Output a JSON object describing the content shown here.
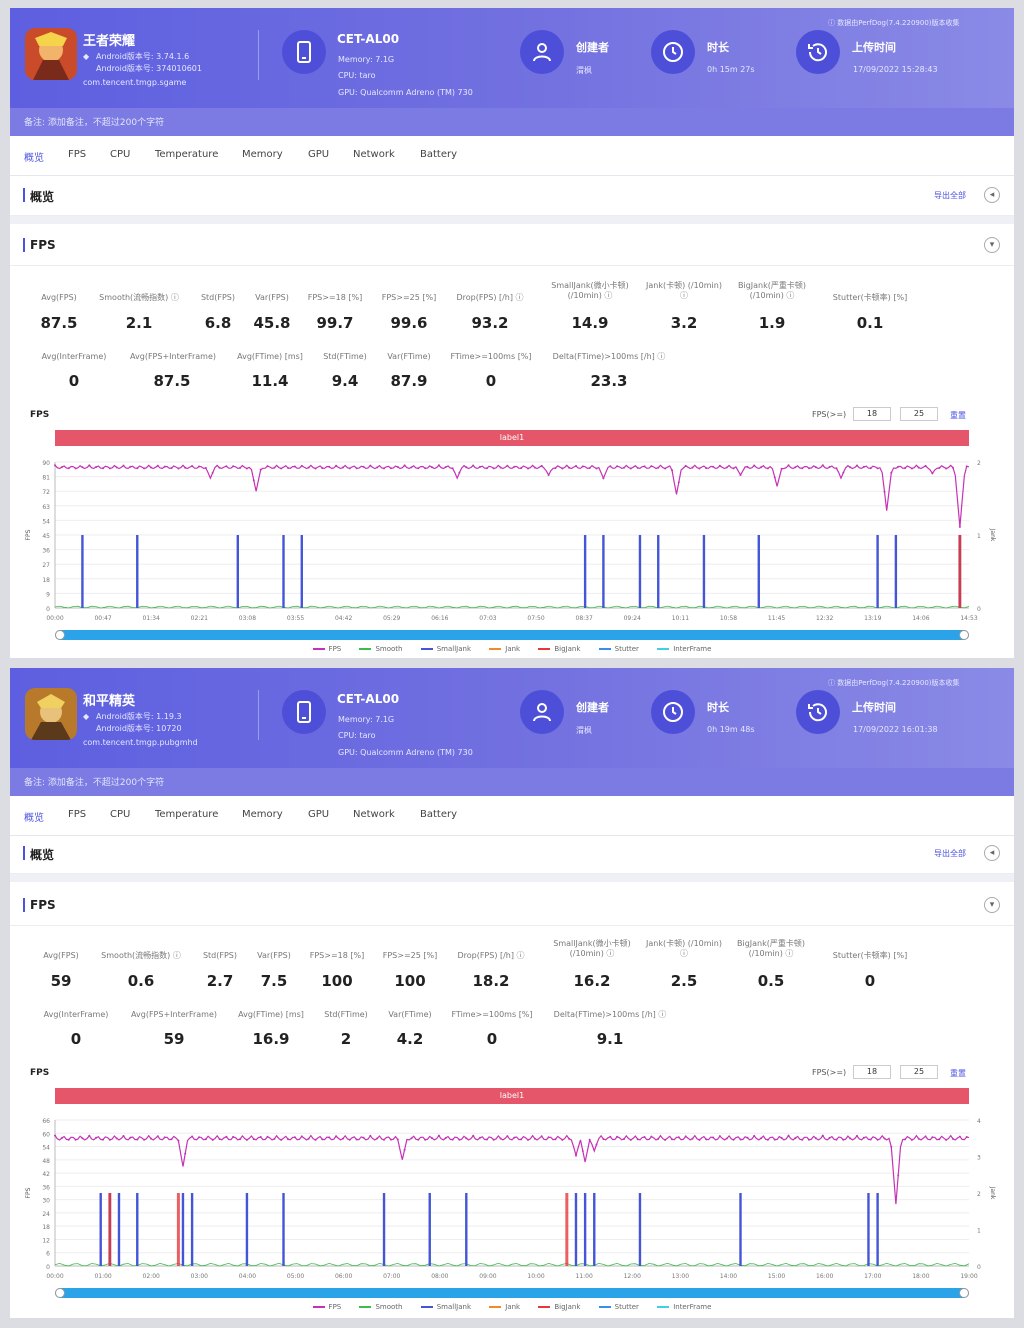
{
  "colors": {
    "accent": "#4b52e0",
    "fps": "#c532b6",
    "smooth": "#3dbb4e",
    "smalljank": "#4456d6",
    "jank": "#f08a2a",
    "bigjank": "#e5383b",
    "stutter": "#3a8ee6",
    "interframe": "#3fd0e6",
    "label_bar": "#e5566a"
  },
  "tabs": [
    "概览",
    "FPS",
    "CPU",
    "Temperature",
    "Memory",
    "GPU",
    "Network",
    "Battery"
  ],
  "legend": [
    "FPS",
    "Smooth",
    "SmallJank",
    "Jank",
    "BigJank",
    "Stutter",
    "InterFrame"
  ],
  "reports": [
    {
      "game": {
        "name": "王者荣耀",
        "version_label": "Android版本号: 3.74.1.6",
        "code_label": "Android版本号: 374010601",
        "package": "com.tencent.tmgp.sgame"
      },
      "device": {
        "model": "CET-AL00",
        "memory": "Memory: 7.1G",
        "cpu": "CPU: taro",
        "gpu": "GPU: Qualcomm Adreno (TM) 730"
      },
      "creator": {
        "title": "创建者",
        "value": "渭枫"
      },
      "duration": {
        "title": "时长",
        "value": "0h 15m 27s"
      },
      "upload": {
        "title": "上传时间",
        "value": "17/09/2022 15:28:43"
      },
      "source_note": "ⓘ 数据由PerfDog(7.4.220900)版本收集",
      "remark": "备注: 添加备注，不超过200个字符",
      "overview_title": "概览",
      "export_label": "导出全部",
      "fps_section_title": "FPS",
      "metrics_row1": [
        {
          "label": "Avg(FPS)",
          "value": "87.5"
        },
        {
          "label": "Smooth(流畅指数) ⓘ",
          "value": "2.1"
        },
        {
          "label": "Std(FPS)",
          "value": "6.8"
        },
        {
          "label": "Var(FPS)",
          "value": "45.8"
        },
        {
          "label": "FPS>=18 [%]",
          "value": "99.7"
        },
        {
          "label": "FPS>=25 [%]",
          "value": "99.6"
        },
        {
          "label": "Drop(FPS) [/h] ⓘ",
          "value": "93.2"
        },
        {
          "label": "SmallJank(微小卡顿) (/10min) ⓘ",
          "value": "14.9"
        },
        {
          "label": "Jank(卡顿) (/10min) ⓘ",
          "value": "3.2"
        },
        {
          "label": "BigJank(严重卡顿) (/10min) ⓘ",
          "value": "1.9"
        },
        {
          "label": "Stutter(卡顿率) [%]",
          "value": "0.1"
        }
      ],
      "metrics_row2": [
        {
          "label": "Avg(InterFrame)",
          "value": "0"
        },
        {
          "label": "Avg(FPS+InterFrame)",
          "value": "87.5"
        },
        {
          "label": "Avg(FTime) [ms]",
          "value": "11.4"
        },
        {
          "label": "Std(FTime)",
          "value": "9.4"
        },
        {
          "label": "Var(FTime)",
          "value": "87.9"
        },
        {
          "label": "FTime>=100ms [%]",
          "value": "0"
        },
        {
          "label": "Delta(FTime)>100ms [/h] ⓘ",
          "value": "23.3"
        }
      ],
      "chart_label": "FPS",
      "threshold_label": "FPS(>=)",
      "threshold_1": "18",
      "threshold_2": "25",
      "threshold_link": "重置",
      "label_bar": "label1",
      "chart_data": {
        "type": "line",
        "ylabel": "FPS",
        "y2label": "Jank",
        "y_ticks": [
          "90",
          "81",
          "72",
          "63",
          "54",
          "45",
          "36",
          "27",
          "18",
          "9",
          "0"
        ],
        "y2_ticks": [
          "2",
          "1",
          "0"
        ],
        "ylim": [
          0,
          90
        ],
        "y2lim": [
          0,
          2
        ],
        "x_ticks": [
          "00:00",
          "00:47",
          "01:34",
          "02:21",
          "03:08",
          "03:55",
          "04:42",
          "05:29",
          "06:16",
          "07:03",
          "07:50",
          "08:37",
          "09:24",
          "10:11",
          "10:58",
          "11:45",
          "12:32",
          "13:19",
          "14:06",
          "14:53"
        ],
        "fps_base": 88,
        "fps_dips": [
          [
            0.17,
            80
          ],
          [
            0.22,
            72
          ],
          [
            0.44,
            80
          ],
          [
            0.54,
            82
          ],
          [
            0.6,
            80
          ],
          [
            0.68,
            70
          ],
          [
            0.75,
            82
          ],
          [
            0.79,
            75
          ],
          [
            0.86,
            80
          ],
          [
            0.91,
            60
          ],
          [
            0.96,
            83
          ],
          [
            0.99,
            50
          ]
        ],
        "smalljank_spikes": [
          0.03,
          0.09,
          0.2,
          0.25,
          0.27,
          0.58,
          0.6,
          0.64,
          0.66,
          0.71,
          0.77,
          0.9,
          0.92,
          0.99
        ],
        "bigjank_spikes": [
          0.99
        ]
      }
    },
    {
      "game": {
        "name": "和平精英",
        "version_label": "Android版本号: 1.19.3",
        "code_label": "Android版本号: 10720",
        "package": "com.tencent.tmgp.pubgmhd"
      },
      "device": {
        "model": "CET-AL00",
        "memory": "Memory: 7.1G",
        "cpu": "CPU: taro",
        "gpu": "GPU: Qualcomm Adreno (TM) 730"
      },
      "creator": {
        "title": "创建者",
        "value": "渭枫"
      },
      "duration": {
        "title": "时长",
        "value": "0h 19m 48s"
      },
      "upload": {
        "title": "上传时间",
        "value": "17/09/2022 16:01:38"
      },
      "source_note": "ⓘ 数据由PerfDog(7.4.220900)版本收集",
      "remark": "备注: 添加备注，不超过200个字符",
      "overview_title": "概览",
      "export_label": "导出全部",
      "fps_section_title": "FPS",
      "metrics_row1": [
        {
          "label": "Avg(FPS)",
          "value": "59"
        },
        {
          "label": "Smooth(流畅指数) ⓘ",
          "value": "0.6"
        },
        {
          "label": "Std(FPS)",
          "value": "2.7"
        },
        {
          "label": "Var(FPS)",
          "value": "7.5"
        },
        {
          "label": "FPS>=18 [%]",
          "value": "100"
        },
        {
          "label": "FPS>=25 [%]",
          "value": "100"
        },
        {
          "label": "Drop(FPS) [/h] ⓘ",
          "value": "18.2"
        },
        {
          "label": "SmallJank(微小卡顿) (/10min) ⓘ",
          "value": "16.2"
        },
        {
          "label": "Jank(卡顿) (/10min) ⓘ",
          "value": "2.5"
        },
        {
          "label": "BigJank(严重卡顿) (/10min) ⓘ",
          "value": "0.5"
        },
        {
          "label": "Stutter(卡顿率) [%]",
          "value": "0"
        }
      ],
      "metrics_row2": [
        {
          "label": "Avg(InterFrame)",
          "value": "0"
        },
        {
          "label": "Avg(FPS+InterFrame)",
          "value": "59"
        },
        {
          "label": "Avg(FTime) [ms]",
          "value": "16.9"
        },
        {
          "label": "Std(FTime)",
          "value": "2"
        },
        {
          "label": "Var(FTime)",
          "value": "4.2"
        },
        {
          "label": "FTime>=100ms [%]",
          "value": "0"
        },
        {
          "label": "Delta(FTime)>100ms [/h] ⓘ",
          "value": "9.1"
        }
      ],
      "chart_label": "FPS",
      "threshold_label": "FPS(>=)",
      "threshold_1": "18",
      "threshold_2": "25",
      "threshold_link": "重置",
      "label_bar": "label1",
      "chart_data": {
        "type": "line",
        "ylabel": "FPS",
        "y2label": "Jank",
        "y_ticks": [
          "66",
          "60",
          "54",
          "48",
          "42",
          "36",
          "30",
          "24",
          "18",
          "12",
          "6",
          "0"
        ],
        "y2_ticks": [
          "4",
          "3",
          "2",
          "1",
          "0"
        ],
        "ylim": [
          0,
          66
        ],
        "y2lim": [
          0,
          4
        ],
        "x_ticks": [
          "00:00",
          "01:00",
          "02:00",
          "03:00",
          "04:00",
          "05:00",
          "06:00",
          "07:00",
          "08:00",
          "09:00",
          "10:00",
          "11:00",
          "12:00",
          "13:00",
          "14:00",
          "15:00",
          "16:00",
          "17:00",
          "18:00",
          "19:00"
        ],
        "fps_base": 59,
        "fps_dips": [
          [
            0.14,
            45
          ],
          [
            0.38,
            48
          ],
          [
            0.57,
            50
          ],
          [
            0.58,
            47
          ],
          [
            0.59,
            52
          ],
          [
            0.92,
            28
          ]
        ],
        "smalljank_spikes": [
          0.05,
          0.06,
          0.07,
          0.09,
          0.14,
          0.15,
          0.21,
          0.25,
          0.36,
          0.41,
          0.45,
          0.57,
          0.58,
          0.59,
          0.64,
          0.75,
          0.89,
          0.9
        ],
        "bigjank_spikes": [
          0.06,
          0.135,
          0.56
        ]
      }
    }
  ]
}
